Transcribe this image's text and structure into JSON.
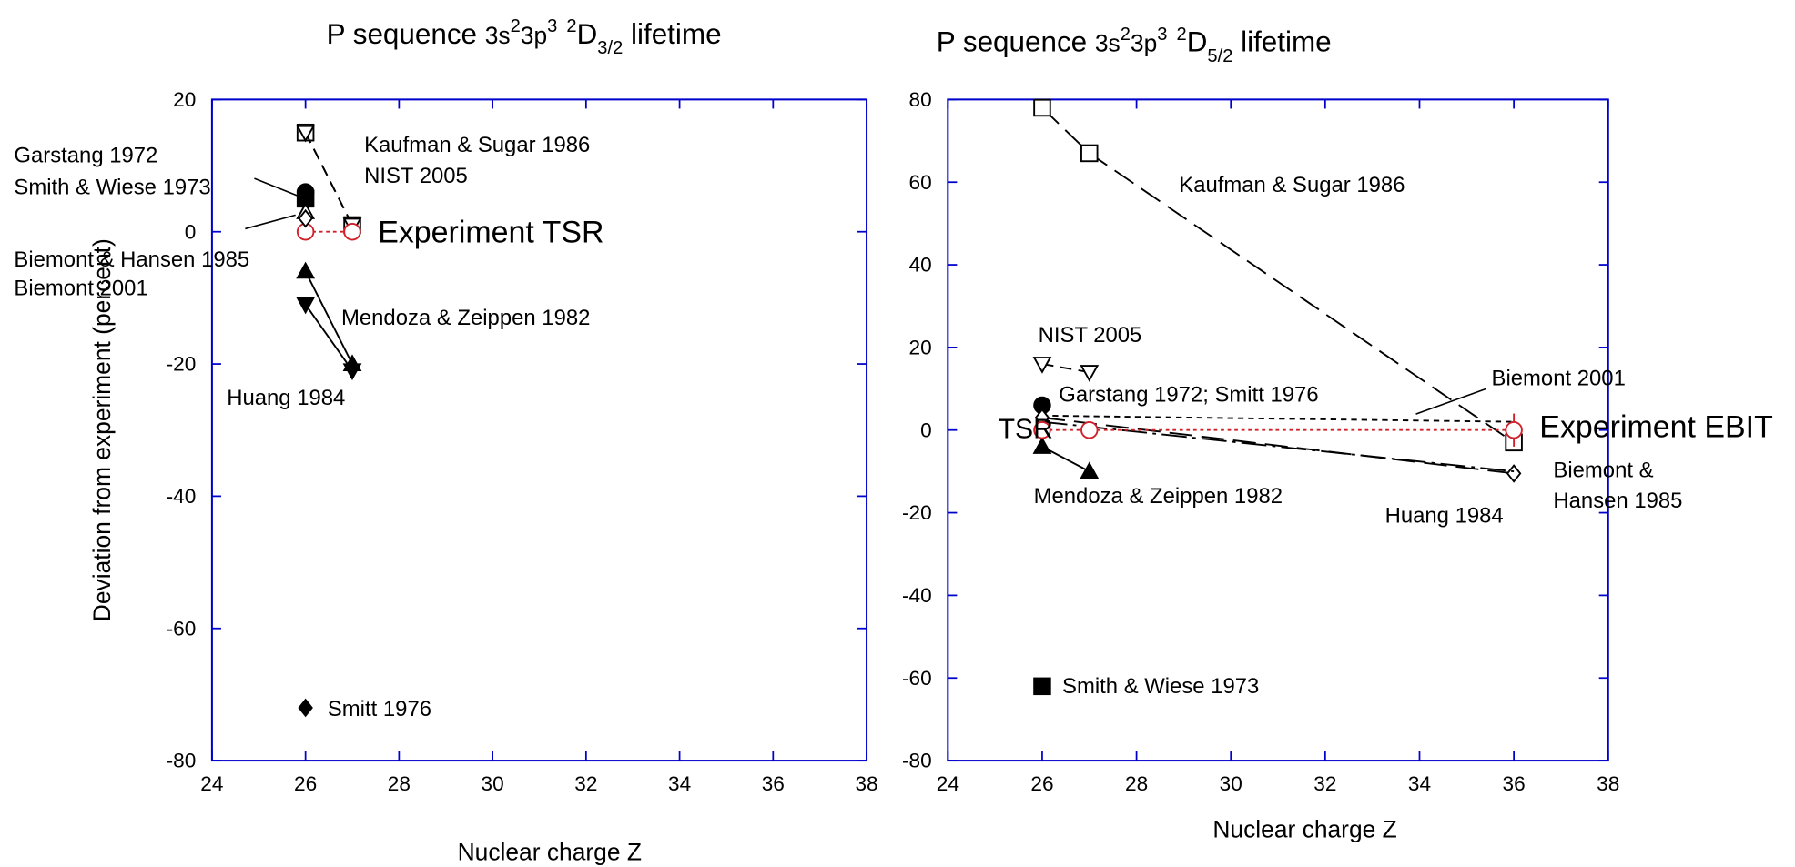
{
  "chart_data": [
    {
      "type": "scatter",
      "title": [
        "P sequence ",
        "3s",
        "2",
        "3p",
        "3",
        "2",
        "D",
        "3/2",
        " lifetime"
      ],
      "x_label": "Nuclear charge Z",
      "y_label": "Deviation from experiment (percent)",
      "xlim": [
        24,
        38
      ],
      "xticks": [
        24,
        26,
        28,
        30,
        32,
        34,
        36,
        38
      ],
      "ylim": [
        -80,
        20
      ],
      "yticks": [
        -80,
        -60,
        -40,
        -20,
        0,
        20
      ],
      "frame_color": "#0000cc",
      "series": [
        {
          "x": [
            26,
            27
          ],
          "values": [
            15,
            1
          ],
          "marker": "open-square",
          "dash": "dashed",
          "color": "#000000"
        },
        {
          "x": [
            26,
            27
          ],
          "values": [
            15,
            1
          ],
          "marker": "open-tri-down",
          "dash": "dashed",
          "color": "#000000"
        },
        {
          "x": [
            26
          ],
          "values": [
            6
          ],
          "marker": "filled-circle",
          "dash": "none",
          "color": "#000000"
        },
        {
          "x": [
            26
          ],
          "values": [
            5
          ],
          "marker": "filled-square",
          "dash": "none",
          "color": "#000000"
        },
        {
          "x": [
            26,
            27
          ],
          "values": [
            0,
            0
          ],
          "marker": "open-circle",
          "dash": "dotted",
          "color": "#d0202a"
        },
        {
          "x": [
            26
          ],
          "values": [
            3
          ],
          "marker": "open-tri-up",
          "dash": "none",
          "color": "#000000"
        },
        {
          "x": [
            26
          ],
          "values": [
            2
          ],
          "marker": "open-diamond",
          "dash": "none",
          "color": "#000000"
        },
        {
          "x": [
            26,
            27
          ],
          "values": [
            -6,
            -20
          ],
          "marker": "filled-tri-up",
          "dash": "solid",
          "color": "#000000"
        },
        {
          "x": [
            26,
            27
          ],
          "values": [
            -11,
            -21
          ],
          "marker": "filled-tri-down",
          "dash": "solid",
          "color": "#000000"
        },
        {
          "x": [
            26
          ],
          "values": [
            -72
          ],
          "marker": "filled-diamond",
          "dash": "none",
          "color": "#000000"
        }
      ],
      "annotations": [
        {
          "text": "Kaufman & Sugar 1986"
        },
        {
          "text": "NIST 2005"
        },
        {
          "text": "Garstang 1972"
        },
        {
          "text": "Smith & Wiese 1973"
        },
        {
          "text": "Experiment TSR",
          "color": "#d0202a"
        },
        {
          "text": "Biemont & Hansen 1985"
        },
        {
          "text": "Biemont 2001"
        },
        {
          "text": "Mendoza & Zeippen 1982"
        },
        {
          "text": "Huang 1984"
        },
        {
          "text": "Smitt 1976"
        }
      ]
    },
    {
      "type": "scatter",
      "title": [
        "P sequence ",
        "3s",
        "2",
        "3p",
        "3",
        "2",
        "D",
        "5/2",
        " lifetime"
      ],
      "x_label": "Nuclear charge Z",
      "xlim": [
        24,
        38
      ],
      "xticks": [
        24,
        26,
        28,
        30,
        32,
        34,
        36,
        38
      ],
      "ylim": [
        -80,
        80
      ],
      "yticks": [
        -80,
        -60,
        -40,
        -20,
        0,
        20,
        40,
        60,
        80
      ],
      "frame_color": "#0000cc",
      "series": [
        {
          "x": [
            26,
            27,
            36
          ],
          "values": [
            78,
            67,
            -3
          ],
          "marker": "open-square",
          "dash": "long-dash",
          "color": "#000000"
        },
        {
          "x": [
            26,
            27
          ],
          "values": [
            16,
            14
          ],
          "marker": "open-tri-down",
          "dash": "dashed",
          "color": "#000000"
        },
        {
          "x": [
            26,
            36
          ],
          "values": [
            3.5,
            2
          ],
          "marker": "none",
          "dash": "short-dash",
          "color": "#000000"
        },
        {
          "x": [
            26
          ],
          "values": [
            6
          ],
          "marker": "filled-circle",
          "dash": "none",
          "color": "#000000"
        },
        {
          "x": [
            26
          ],
          "values": [
            5
          ],
          "marker": "filled-diamond",
          "dash": "none",
          "color": "#000000"
        },
        {
          "x": [
            26,
            36
          ],
          "values": [
            3,
            -10.5
          ],
          "marker": "open-diamond",
          "dash": "long-dash",
          "color": "#000000"
        },
        {
          "x": [
            26,
            36
          ],
          "values": [
            2,
            -10
          ],
          "marker": "none",
          "dash": "dash-dot",
          "color": "#000000"
        },
        {
          "x": [
            26,
            27
          ],
          "values": [
            -4,
            -10
          ],
          "marker": "filled-tri-up",
          "dash": "solid",
          "color": "#000000"
        },
        {
          "x": [
            26,
            27,
            36
          ],
          "values": [
            0,
            0,
            0
          ],
          "errors": [
            null,
            null,
            4
          ],
          "marker": "open-circle",
          "dash": "dotted",
          "color": "#d0202a"
        },
        {
          "x": [
            26
          ],
          "values": [
            -62
          ],
          "marker": "filled-square",
          "dash": "none",
          "color": "#000000"
        }
      ],
      "annotations": [
        {
          "text": "Kaufman & Sugar 1986"
        },
        {
          "text": "NIST 2005"
        },
        {
          "text": "Biemont 2001"
        },
        {
          "text": "Garstang 1972; Smitt 1976"
        },
        {
          "text": "TSR"
        },
        {
          "text": "Experiment EBIT",
          "color": "#9b3fa0"
        },
        {
          "text": "Mendoza & Zeippen 1982"
        },
        {
          "text": "Huang 1984"
        },
        {
          "text": "Biemont &"
        },
        {
          "text": "Hansen 1985"
        },
        {
          "text": "Smith & Wiese 1973"
        }
      ]
    }
  ]
}
